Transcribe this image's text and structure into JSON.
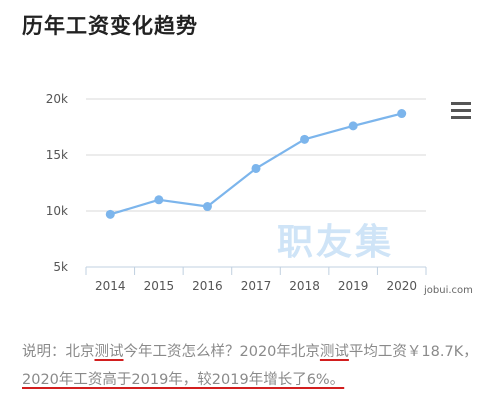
{
  "page_title": "历年工资变化趋势",
  "menu": {
    "icon": "hamburger-menu-icon"
  },
  "watermark": "职友集",
  "credit": "jobui.com",
  "note": {
    "part1": "说明：北京",
    "part2": "测试",
    "part3": "今年工资怎么样？2020年北京",
    "part4": "测试",
    "part5": "平均工资￥18.7K，",
    "part6": "2020年工资高于2019年，较2019年增长了6%。"
  },
  "colors": {
    "line": "#7cb5ec",
    "grid": "#d8d8d8",
    "axis": "#c0d0e0",
    "underline": "#d21e1e"
  },
  "chart_data": {
    "type": "line",
    "title": "历年工资变化趋势",
    "categories": [
      "2014",
      "2015",
      "2016",
      "2017",
      "2018",
      "2019",
      "2020"
    ],
    "series": [
      {
        "values": [
          9.7,
          11.0,
          10.4,
          13.8,
          16.4,
          17.6,
          18.7
        ]
      }
    ],
    "y_ticks": [
      5,
      10,
      15,
      20
    ],
    "y_tick_labels": [
      "5k",
      "10k",
      "15k",
      "20k"
    ],
    "ylim": [
      5,
      20
    ],
    "grid": true,
    "xlabel": "",
    "ylabel": ""
  }
}
